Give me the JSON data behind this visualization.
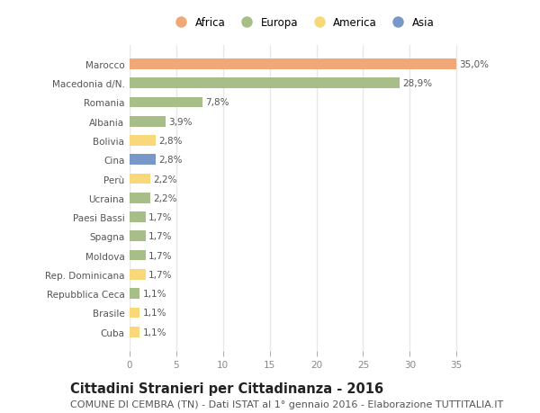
{
  "countries": [
    "Marocco",
    "Macedonia d/N.",
    "Romania",
    "Albania",
    "Bolivia",
    "Cina",
    "Perù",
    "Ucraina",
    "Paesi Bassi",
    "Spagna",
    "Moldova",
    "Rep. Dominicana",
    "Repubblica Ceca",
    "Brasile",
    "Cuba"
  ],
  "values": [
    35.0,
    28.9,
    7.8,
    3.9,
    2.8,
    2.8,
    2.2,
    2.2,
    1.7,
    1.7,
    1.7,
    1.7,
    1.1,
    1.1,
    1.1
  ],
  "labels": [
    "35,0%",
    "28,9%",
    "7,8%",
    "3,9%",
    "2,8%",
    "2,8%",
    "2,2%",
    "2,2%",
    "1,7%",
    "1,7%",
    "1,7%",
    "1,7%",
    "1,1%",
    "1,1%",
    "1,1%"
  ],
  "colors": [
    "#f0a878",
    "#a8be88",
    "#a8be88",
    "#a8be88",
    "#f8d878",
    "#7898c8",
    "#f8d878",
    "#a8be88",
    "#a8be88",
    "#a8be88",
    "#a8be88",
    "#f8d878",
    "#a8be88",
    "#f8d878",
    "#f8d878"
  ],
  "continents": [
    "Africa",
    "Europa",
    "America",
    "Asia"
  ],
  "legend_colors": [
    "#f0a878",
    "#a8be88",
    "#f8d878",
    "#7898c8"
  ],
  "xlim": [
    0,
    37
  ],
  "xticks": [
    0,
    5,
    10,
    15,
    20,
    25,
    30,
    35
  ],
  "title": "Cittadini Stranieri per Cittadinanza - 2016",
  "subtitle": "COMUNE DI CEMBRA (TN) - Dati ISTAT al 1° gennaio 2016 - Elaborazione TUTTITALIA.IT",
  "bg_color": "#ffffff",
  "bar_height": 0.55,
  "grid_color": "#e8e8e8",
  "title_fontsize": 10.5,
  "subtitle_fontsize": 8,
  "label_fontsize": 7.5,
  "tick_fontsize": 7.5
}
